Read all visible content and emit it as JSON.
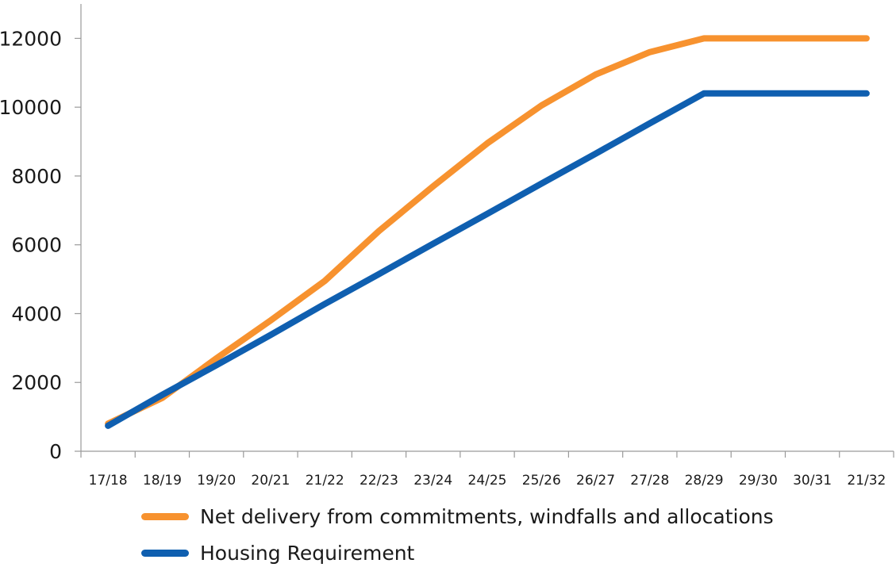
{
  "chart_data": {
    "type": "line",
    "categories": [
      "17/18",
      "18/19",
      "19/20",
      "20/21",
      "21/22",
      "22/23",
      "23/24",
      "24/25",
      "25/26",
      "26/27",
      "27/28",
      "28/29",
      "29/30",
      "30/31",
      "21/32"
    ],
    "ylim": [
      0,
      13000
    ],
    "yticks": [
      0,
      2000,
      4000,
      6000,
      8000,
      10000,
      12000
    ],
    "series": [
      {
        "name": "Net delivery from commitments, windfalls and allocations",
        "color": "#f7922f",
        "values": [
          800,
          1550,
          2700,
          3800,
          4950,
          6400,
          7700,
          8950,
          10050,
          10950,
          11600,
          12000,
          12000,
          12000,
          12000
        ]
      },
      {
        "name": "Housing Requirement",
        "color": "#0f5fb0",
        "values": [
          740,
          1640,
          2500,
          3380,
          4280,
          5150,
          6030,
          6900,
          7780,
          8650,
          9530,
          10400,
          10400,
          10400,
          10400
        ]
      }
    ]
  }
}
